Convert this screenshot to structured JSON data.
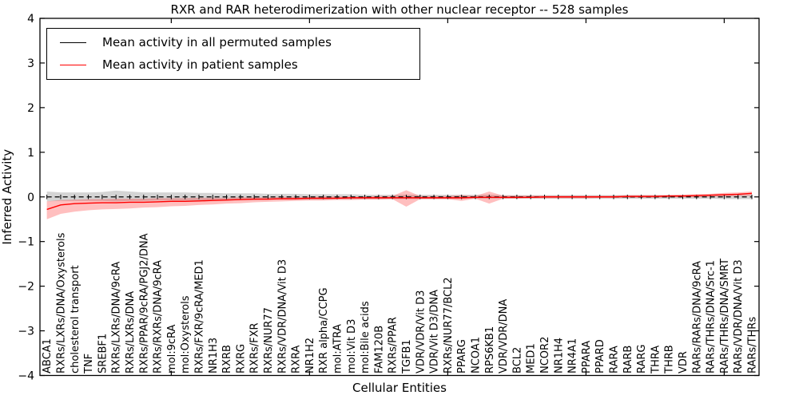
{
  "figure": {
    "title": "RXR and RAR heterodimerization with other nuclear receptor -- 528 samples",
    "xlabel": "Cellular Entities",
    "ylabel": "Inferred Activity"
  },
  "legend": {
    "items": [
      {
        "label": "Mean activity in all permuted samples",
        "color": "#000000"
      },
      {
        "label": "Mean activity in patient samples",
        "color": "#ff0000"
      }
    ]
  },
  "colors": {
    "permuted_line": "#000000",
    "permuted_band": "rgba(120,120,120,0.32)",
    "patient_line": "#ff0000",
    "patient_band": "rgba(255,0,0,0.25)",
    "axes": "#000000",
    "background": "#ffffff"
  },
  "chart_data": {
    "type": "line",
    "title": "RXR and RAR heterodimerization with other nuclear receptor -- 528 samples",
    "xlabel": "Cellular Entities",
    "ylabel": "Inferred Activity",
    "ylim": [
      -4,
      4
    ],
    "y_tick_values": [
      4,
      3,
      2,
      1,
      0,
      -1,
      -2,
      -3,
      -4
    ],
    "y_tick_labels": [
      "4",
      "3",
      "2",
      "1",
      "0",
      "−1",
      "−2",
      "−3",
      "−4"
    ],
    "x_major_tick_indices": [
      9,
      19,
      29,
      39,
      49
    ],
    "grid": false,
    "legend_position": "upper left",
    "categories": [
      "ABCA1",
      "RXRs/LXRs/DNA/Oxysterols",
      "cholesterol transport",
      "TNF",
      "SREBF1",
      "RXRs/LXRs/DNA/9cRA",
      "RXRs/LXRs/DNA",
      "RXRs/PPAR/9cRA/PGJ2/DNA",
      "RXRs/RXRs/DNA/9cRA",
      "mol:9cRA",
      "mol:Oxysterols",
      "RXRs/FXR/9cRA/MED1",
      "NR1H3",
      "RXRB",
      "RXRG",
      "RXRs/FXR",
      "RXRs/NUR77",
      "RXRs/VDR/DNA/Vit D3",
      "RXRA",
      "NR1H2",
      "RXR alpha/CCPG",
      "mol:ATRA",
      "mol:Vit D3",
      "mol:Bile acids",
      "FAM120B",
      "RXRs/PPAR",
      "TGFB1",
      "VDR/VDR/Vit D3",
      "VDR/Vit D3/DNA",
      "RXRs/NUR77/BCL2",
      "PPARG",
      "NCOA1",
      "RPS6KB1",
      "VDR/VDR/DNA",
      "BCL2",
      "MED1",
      "NCOR2",
      "NR1H4",
      "NR4A1",
      "PPARA",
      "PPARD",
      "RARA",
      "RARB",
      "RARG",
      "THRA",
      "THRB",
      "VDR",
      "RARs/RARs/DNA/9cRA",
      "RARs/THRs/DNA/Src-1",
      "RARs/THRs/DNA/SMRT",
      "RARs/VDR/DNA/Vit D3",
      "RARs/THRs"
    ],
    "series": [
      {
        "name": "Mean activity in all permuted samples",
        "color": "#000000",
        "style": "dashed",
        "values": [
          0,
          0,
          0,
          0,
          0,
          0,
          0,
          0,
          0,
          0,
          0,
          0,
          0,
          0,
          0,
          0,
          0,
          0,
          0,
          0,
          0,
          0,
          0,
          0,
          0,
          0,
          0,
          0,
          0,
          0,
          0,
          0,
          0,
          0,
          0,
          0,
          0,
          0,
          0,
          0,
          0,
          0,
          0,
          0,
          0,
          0,
          0,
          0,
          0,
          0,
          0,
          0
        ],
        "band_lo": [
          -0.1,
          -0.09,
          -0.09,
          -0.09,
          -0.09,
          -0.1,
          -0.09,
          -0.09,
          -0.08,
          -0.08,
          -0.08,
          -0.08,
          -0.07,
          -0.07,
          -0.07,
          -0.07,
          -0.06,
          -0.06,
          -0.06,
          -0.06,
          -0.06,
          -0.05,
          -0.05,
          -0.05,
          -0.05,
          -0.05,
          -0.05,
          -0.05,
          -0.05,
          -0.05,
          -0.04,
          -0.04,
          -0.04,
          -0.04,
          -0.04,
          -0.04,
          -0.04,
          -0.04,
          -0.04,
          -0.04,
          -0.04,
          -0.04,
          -0.04,
          -0.04,
          -0.04,
          -0.04,
          -0.04,
          -0.04,
          -0.04,
          -0.05,
          -0.05,
          -0.05
        ],
        "band_hi": [
          0.12,
          0.1,
          0.1,
          0.1,
          0.11,
          0.14,
          0.12,
          0.1,
          0.1,
          0.1,
          0.1,
          0.09,
          0.09,
          0.08,
          0.08,
          0.08,
          0.07,
          0.07,
          0.07,
          0.06,
          0.06,
          0.06,
          0.06,
          0.05,
          0.05,
          0.05,
          0.05,
          0.05,
          0.05,
          0.05,
          0.05,
          0.05,
          0.05,
          0.04,
          0.04,
          0.04,
          0.04,
          0.04,
          0.04,
          0.04,
          0.04,
          0.04,
          0.04,
          0.04,
          0.04,
          0.04,
          0.04,
          0.04,
          0.05,
          0.05,
          0.05,
          0.05
        ]
      },
      {
        "name": "Mean activity in patient samples",
        "color": "#ff0000",
        "style": "solid",
        "values": [
          -0.28,
          -0.18,
          -0.15,
          -0.14,
          -0.13,
          -0.13,
          -0.12,
          -0.12,
          -0.11,
          -0.1,
          -0.1,
          -0.09,
          -0.08,
          -0.07,
          -0.06,
          -0.05,
          -0.05,
          -0.04,
          -0.04,
          -0.03,
          -0.03,
          -0.03,
          -0.02,
          -0.02,
          -0.02,
          -0.02,
          -0.02,
          -0.02,
          -0.02,
          -0.02,
          -0.02,
          -0.01,
          -0.01,
          -0.01,
          -0.01,
          -0.01,
          0.0,
          0.0,
          0.0,
          0.0,
          0.0,
          0.0,
          0.01,
          0.01,
          0.01,
          0.02,
          0.02,
          0.03,
          0.04,
          0.05,
          0.06,
          0.08
        ],
        "band_lo": [
          -0.5,
          -0.38,
          -0.33,
          -0.3,
          -0.28,
          -0.27,
          -0.26,
          -0.24,
          -0.23,
          -0.21,
          -0.2,
          -0.18,
          -0.17,
          -0.15,
          -0.14,
          -0.12,
          -0.11,
          -0.1,
          -0.09,
          -0.08,
          -0.08,
          -0.07,
          -0.07,
          -0.06,
          -0.06,
          -0.05,
          -0.22,
          -0.05,
          -0.05,
          -0.05,
          -0.09,
          -0.04,
          -0.15,
          -0.04,
          -0.04,
          -0.03,
          -0.03,
          -0.03,
          -0.03,
          -0.03,
          -0.02,
          -0.02,
          -0.02,
          -0.02,
          -0.02,
          -0.01,
          -0.01,
          -0.01,
          0.0,
          0.01,
          0.02,
          0.03
        ],
        "band_hi": [
          -0.1,
          -0.07,
          -0.06,
          -0.05,
          -0.05,
          -0.04,
          -0.04,
          -0.04,
          -0.03,
          -0.03,
          -0.03,
          -0.02,
          -0.02,
          -0.02,
          -0.01,
          -0.01,
          -0.01,
          0.0,
          0.0,
          0.0,
          0.01,
          0.01,
          0.01,
          0.01,
          0.02,
          0.02,
          0.15,
          0.02,
          0.02,
          0.02,
          0.04,
          0.02,
          0.12,
          0.03,
          0.03,
          0.03,
          0.03,
          0.03,
          0.03,
          0.03,
          0.03,
          0.03,
          0.04,
          0.04,
          0.04,
          0.04,
          0.05,
          0.06,
          0.07,
          0.09,
          0.1,
          0.12
        ]
      }
    ]
  }
}
